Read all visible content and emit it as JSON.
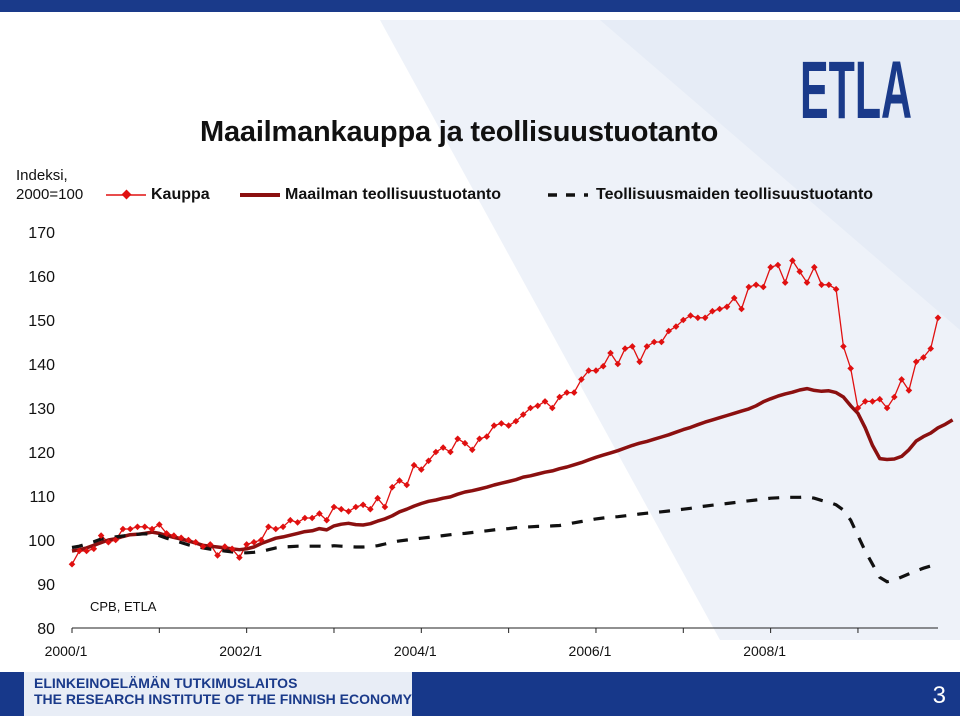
{
  "slide": {
    "title": "Maailmankauppa ja teollisuustuotanto",
    "logo_text": "ETLA",
    "source": "CPB, ETLA",
    "footer_line1": "ELINKEINOELÄMÄN TUTKIMUSLAITOS",
    "footer_line2": "THE RESEARCH INSTITUTE OF THE FINNISH ECONOMY",
    "page_number": "3",
    "brand_color": "#1a3a8a"
  },
  "chart_data": {
    "type": "line",
    "title": "Maailmankauppa ja teollisuustuotanto",
    "ylabel_line1": "Indeksi,",
    "ylabel_line2": "2000=100",
    "xlabel": "",
    "ylim": [
      80,
      170
    ],
    "yticks": [
      "170",
      "160",
      "150",
      "140",
      "130",
      "120",
      "110",
      "100",
      "90",
      "80"
    ],
    "xticks": [
      "2000/1",
      "2002/1",
      "2004/1",
      "2006/1",
      "2008/1"
    ],
    "x_start": "2000/1",
    "frequency": "monthly",
    "legend_position": "top",
    "grid": false,
    "series": [
      {
        "name": "Kauppa",
        "style": "red line with diamond markers",
        "color": "#e01010",
        "values": [
          94.5,
          97.5,
          97.5,
          98,
          101,
          99.5,
          100,
          102.5,
          102.5,
          103,
          103,
          102.5,
          103.5,
          101.5,
          101,
          100.5,
          100,
          99.5,
          98.5,
          99,
          96.5,
          98.5,
          98,
          96,
          99,
          99.5,
          100,
          103,
          102.5,
          103,
          104.5,
          104,
          105,
          105,
          106,
          104.5,
          107.5,
          107,
          106.5,
          107.5,
          108,
          107,
          109.5,
          107.5,
          112,
          113.5,
          112.5,
          117,
          116,
          118,
          120,
          121,
          120,
          123,
          122,
          120.5,
          123,
          123.5,
          126,
          126.5,
          126,
          127,
          128.5,
          130,
          130.5,
          131.5,
          130,
          132.5,
          133.5,
          133.5,
          136.5,
          138.5,
          138.5,
          139.5,
          142.5,
          140,
          143.5,
          144,
          140.5,
          144,
          145,
          145,
          147.5,
          148.5,
          150,
          151,
          150.5,
          150.5,
          152,
          152.5,
          153,
          155,
          152.5,
          157.5,
          158,
          157.5,
          162,
          162.5,
          158.5,
          163.5,
          161,
          158.5,
          162,
          158,
          158,
          157,
          144,
          139,
          130,
          131.5,
          131.5,
          132,
          130,
          132.5,
          136.5,
          134,
          140.5,
          141.5,
          143.5,
          150.5
        ]
      },
      {
        "name": "Maailman teollisuustuotanto",
        "style": "thick dark red line",
        "color": "#8b1010",
        "values": [
          97.5,
          97.8,
          98.2,
          98.8,
          99.4,
          100,
          100.3,
          100.8,
          101.2,
          101.3,
          101.5,
          101.8,
          101.5,
          101,
          100.6,
          100.2,
          99.8,
          99.3,
          98.8,
          98.6,
          98.4,
          98.2,
          98,
          97.8,
          98,
          98.4,
          99.2,
          99.8,
          100.4,
          100.7,
          101.1,
          101.5,
          101.9,
          102.1,
          102.6,
          102.3,
          103.2,
          103.6,
          103.8,
          103.5,
          103.4,
          103.7,
          104.3,
          104.8,
          105.5,
          106.4,
          107,
          107.7,
          108.3,
          108.8,
          109.1,
          109.5,
          109.8,
          110.4,
          110.9,
          111.2,
          111.6,
          112,
          112.5,
          112.9,
          113.3,
          113.7,
          114.3,
          114.6,
          115,
          115.4,
          115.7,
          116.2,
          116.6,
          117.1,
          117.6,
          118.2,
          118.8,
          119.3,
          119.8,
          120.3,
          120.9,
          121.5,
          122,
          122.4,
          122.9,
          123.4,
          123.9,
          124.5,
          125.1,
          125.6,
          126.2,
          126.8,
          127.3,
          127.8,
          128.3,
          128.8,
          129.3,
          129.8,
          130.5,
          131.4,
          132.1,
          132.7,
          133.2,
          133.6,
          134.1,
          134.4,
          134,
          133.8,
          133.9,
          133.5,
          132.5,
          130.5,
          128.8,
          125.5,
          121.5,
          118.5,
          118.3,
          118.4,
          119,
          120.5,
          122.5,
          123.5,
          124.3,
          125.5,
          126.3,
          127.3
        ]
      },
      {
        "name": "Teollisuusmaiden teollisuustuotanto",
        "style": "thick black dashed line",
        "color": "#111111",
        "values": [
          98.3,
          98.6,
          99.1,
          99.6,
          100.2,
          100.5,
          100.7,
          100.9,
          101.1,
          101.3,
          101.4,
          101.3,
          101,
          100.4,
          99.9,
          99.4,
          98.9,
          98.5,
          98.2,
          97.9,
          97.7,
          97.5,
          97.3,
          97.1,
          97.1,
          97.2,
          97.4,
          97.8,
          98.2,
          98.4,
          98.5,
          98.6,
          98.6,
          98.6,
          98.6,
          98.5,
          98.7,
          98.6,
          98.5,
          98.4,
          98.4,
          98.5,
          98.7,
          99.1,
          99.5,
          99.8,
          100,
          100.2,
          100.4,
          100.6,
          100.8,
          101,
          101.2,
          101.4,
          101.5,
          101.7,
          101.9,
          102.1,
          102.3,
          102.5,
          102.6,
          102.8,
          102.9,
          103,
          103.1,
          103.1,
          103.2,
          103.3,
          103.6,
          103.9,
          104.2,
          104.5,
          104.8,
          105,
          105.2,
          105.3,
          105.5,
          105.7,
          105.9,
          106.1,
          106.2,
          106.4,
          106.6,
          106.8,
          107,
          107.2,
          107.5,
          107.7,
          107.9,
          108.1,
          108.3,
          108.5,
          108.7,
          108.9,
          109.1,
          109.3,
          109.5,
          109.6,
          109.7,
          109.7,
          109.7,
          109.8,
          109.5,
          109,
          108.6,
          108,
          106.8,
          104.5,
          101,
          97.5,
          94.5,
          91.5,
          90.5,
          90.9,
          91.6,
          92.3,
          93,
          93.6,
          94.1,
          94.6
        ]
      }
    ]
  }
}
